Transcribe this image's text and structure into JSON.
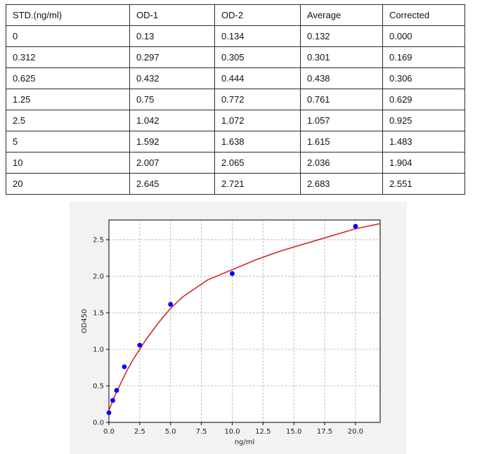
{
  "table": {
    "headers": [
      "STD.(ng/ml)",
      "OD-1",
      "OD-2",
      "Average",
      "Corrected"
    ],
    "rows": [
      [
        "0",
        "0.13",
        "0.134",
        "0.132",
        "0.000"
      ],
      [
        "0.312",
        "0.297",
        "0.305",
        "0.301",
        "0.169"
      ],
      [
        "0.625",
        "0.432",
        "0.444",
        "0.438",
        "0.306"
      ],
      [
        "1.25",
        "0.75",
        "0.772",
        "0.761",
        "0.629"
      ],
      [
        "2.5",
        "1.042",
        "1.072",
        "1.057",
        "0.925"
      ],
      [
        "5",
        "1.592",
        "1.638",
        "1.615",
        "1.483"
      ],
      [
        "10",
        "2.007",
        "2.065",
        "2.036",
        "1.904"
      ],
      [
        "20",
        "2.645",
        "2.721",
        "2.683",
        "2.551"
      ]
    ]
  },
  "chart_data": {
    "type": "scatter",
    "xlabel": "ng/ml",
    "ylabel": "OD450",
    "xlim": [
      0,
      22
    ],
    "ylim": [
      0,
      2.77
    ],
    "xticks": [
      "0.0",
      "2.5",
      "5.0",
      "7.5",
      "10.0",
      "12.5",
      "15.0",
      "17.5",
      "20.0"
    ],
    "yticks": [
      "0.0",
      "0.5",
      "1.0",
      "1.5",
      "2.0",
      "2.5"
    ],
    "grid": true,
    "points": {
      "x": [
        0,
        0.312,
        0.625,
        1.25,
        2.5,
        5,
        10,
        20
      ],
      "y": [
        0.132,
        0.301,
        0.438,
        0.761,
        1.057,
        1.615,
        2.036,
        2.683
      ]
    },
    "fit_curve": {
      "x": [
        0,
        0.25,
        0.5,
        1,
        1.5,
        2,
        3,
        4,
        5,
        6,
        8,
        10,
        12,
        14,
        16,
        18,
        20,
        22
      ],
      "y": [
        0.16,
        0.27,
        0.37,
        0.55,
        0.72,
        0.87,
        1.13,
        1.36,
        1.56,
        1.72,
        1.95,
        2.09,
        2.23,
        2.35,
        2.45,
        2.55,
        2.65,
        2.72
      ]
    },
    "colors": {
      "points": "#0000ff",
      "curve": "#d62728",
      "grid": "#b0b0b0"
    }
  }
}
